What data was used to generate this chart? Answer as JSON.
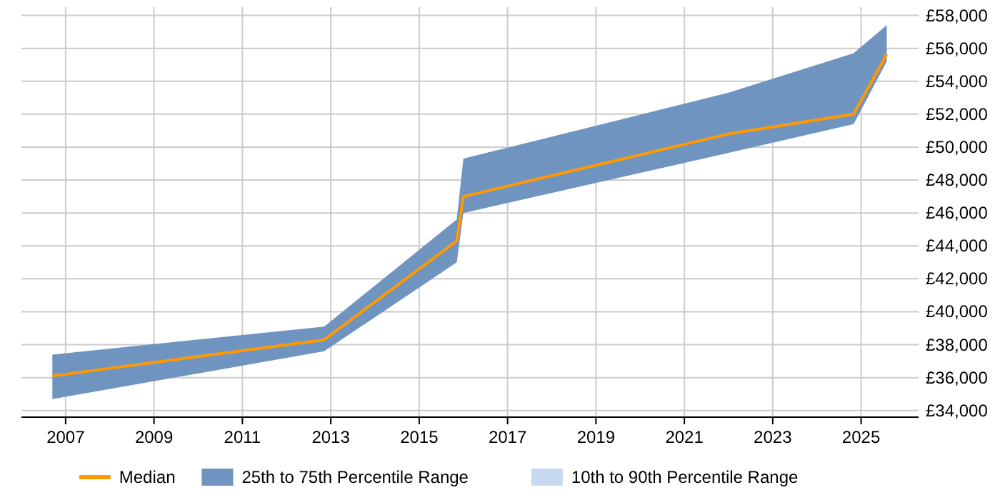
{
  "chart_data": {
    "type": "line",
    "x": [
      2006.7,
      2012.85,
      2015.85,
      2016.0,
      2022.0,
      2024.83,
      2025.58
    ],
    "xlim": [
      2006,
      2026.3
    ],
    "xticks": [
      2007,
      2009,
      2011,
      2013,
      2015,
      2017,
      2019,
      2021,
      2023,
      2025
    ],
    "ylim": [
      33600,
      58500
    ],
    "yticks": [
      {
        "value": 34000,
        "label": "£34,000"
      },
      {
        "value": 36000,
        "label": "£36,000"
      },
      {
        "value": 38000,
        "label": "£38,000"
      },
      {
        "value": 40000,
        "label": "£40,000"
      },
      {
        "value": 42000,
        "label": "£42,000"
      },
      {
        "value": 44000,
        "label": "£44,000"
      },
      {
        "value": 46000,
        "label": "£46,000"
      },
      {
        "value": 48000,
        "label": "£48,000"
      },
      {
        "value": 50000,
        "label": "£50,000"
      },
      {
        "value": 52000,
        "label": "£52,000"
      },
      {
        "value": 54000,
        "label": "£54,000"
      },
      {
        "value": 56000,
        "label": "£56,000"
      },
      {
        "value": 58000,
        "label": "£58,000"
      }
    ],
    "grid": true,
    "legend": "bottom",
    "marker": "none",
    "series": [
      {
        "name": "10th to 90th Percentile Range",
        "type": "area",
        "color": "#c6d9f0",
        "values": [
          null,
          null,
          null,
          null,
          null,
          null,
          null
        ]
      },
      {
        "name": "25th to 75th Percentile Range",
        "type": "area",
        "color": "#7094c0",
        "values": [
          null,
          null,
          null,
          null,
          null,
          null,
          null
        ]
      },
      {
        "name": "Median",
        "type": "line",
        "color": "#ff9900",
        "values": [
          36100,
          38300,
          44300,
          47000,
          50800,
          52000,
          55650
        ],
        "lower": [
          34700,
          37600,
          43000,
          46000,
          49650,
          51400,
          55200
        ],
        "upper": [
          37400,
          39100,
          45600,
          49300,
          53300,
          55700,
          57400
        ]
      }
    ]
  }
}
